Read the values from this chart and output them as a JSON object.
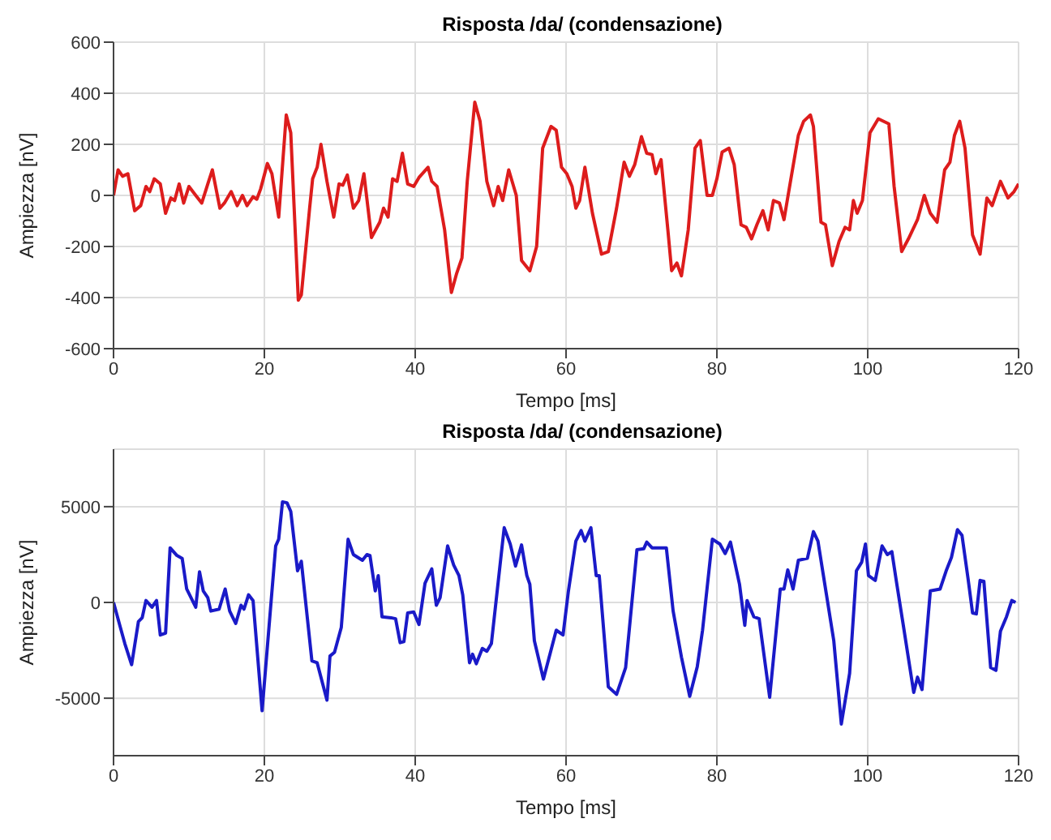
{
  "chart_data": [
    {
      "type": "line",
      "title": "Risposta /da/ (condensazione)",
      "xlabel": "Tempo [ms]",
      "ylabel": "Ampiezza [nV]",
      "xlim": [
        0,
        120
      ],
      "xticks": [
        0,
        20,
        40,
        60,
        80,
        100,
        120
      ],
      "ylim": [
        -600,
        600
      ],
      "yticks": [
        -600,
        -400,
        -200,
        0,
        200,
        400,
        600
      ],
      "grid": true,
      "series": [
        {
          "color": "#dd1c1c",
          "x": [
            0,
            0.6,
            1.2,
            1.9,
            2.8,
            3.6,
            4.3,
            4.8,
            5.4,
            6.2,
            6.9,
            7.6,
            8.1,
            8.7,
            9.3,
            10.0,
            10.9,
            11.7,
            12.5,
            13.1,
            14.1,
            14.7,
            15.6,
            16.4,
            17.1,
            17.7,
            18.5,
            19.0,
            19.5,
            20.4,
            21.0,
            21.9,
            22.9,
            23.5,
            24.5,
            24.9,
            26.0,
            26.4,
            27.0,
            27.5,
            28.3,
            29.2,
            29.9,
            30.4,
            31.0,
            31.8,
            32.5,
            33.2,
            34.2,
            35.3,
            35.8,
            36.4,
            37.0,
            37.6,
            38.3,
            39.0,
            39.8,
            40.5,
            41.7,
            42.2,
            42.9,
            43.9,
            44.8,
            45.5,
            46.2,
            46.9,
            47.9,
            48.6,
            49.5,
            50.4,
            51.0,
            51.6,
            52.4,
            53.4,
            54.1,
            55.2,
            56.1,
            56.9,
            58.0,
            58.7,
            59.4,
            60.1,
            60.8,
            61.3,
            61.8,
            62.5,
            63.5,
            64.7,
            65.6,
            66.7,
            67.7,
            68.4,
            69.1,
            70.0,
            70.7,
            71.4,
            71.9,
            72.6,
            73.5,
            74.0,
            74.7,
            75.3,
            76.2,
            77.1,
            77.8,
            78.7,
            79.4,
            80.0,
            80.7,
            81.6,
            82.3,
            83.2,
            83.9,
            84.6,
            85.3,
            86.1,
            86.8,
            87.5,
            88.3,
            88.9,
            89.7,
            90.8,
            91.5,
            92.4,
            92.8,
            93.8,
            94.4,
            95.3,
            96.2,
            97.0,
            97.6,
            98.1,
            98.6,
            99.3,
            100.3,
            101.4,
            102.8,
            103.5,
            104.5,
            105.4,
            106.6,
            107.5,
            108.3,
            109.2,
            110.2,
            110.9,
            111.5,
            112.2,
            112.9,
            113.9,
            114.9,
            115.8,
            116.5,
            117.6,
            118.6,
            119.4,
            120
          ],
          "values": [
            0,
            100,
            75,
            85,
            -60,
            -40,
            35,
            15,
            65,
            45,
            -70,
            -10,
            -20,
            45,
            -30,
            35,
            0,
            -30,
            45,
            100,
            -50,
            -30,
            15,
            -40,
            0,
            -40,
            -5,
            -15,
            25,
            125,
            85,
            -85,
            315,
            245,
            -410,
            -390,
            -50,
            65,
            110,
            200,
            55,
            -85,
            45,
            40,
            80,
            -50,
            -20,
            85,
            -165,
            -105,
            -50,
            -85,
            65,
            55,
            165,
            45,
            35,
            70,
            110,
            55,
            35,
            -135,
            -380,
            -305,
            -245,
            55,
            365,
            290,
            55,
            -40,
            35,
            -20,
            100,
            0,
            -255,
            -295,
            -200,
            185,
            270,
            255,
            110,
            85,
            35,
            -50,
            -20,
            110,
            -70,
            -230,
            -220,
            -50,
            130,
            75,
            120,
            230,
            165,
            160,
            85,
            140,
            -135,
            -295,
            -265,
            -315,
            -135,
            185,
            215,
            0,
            0,
            65,
            170,
            185,
            120,
            -115,
            -125,
            -170,
            -115,
            -60,
            -135,
            -20,
            -30,
            -95,
            45,
            235,
            290,
            315,
            270,
            -105,
            -115,
            -275,
            -180,
            -125,
            -135,
            -20,
            -70,
            -20,
            245,
            300,
            280,
            35,
            -220,
            -170,
            -95,
            0,
            -70,
            -105,
            100,
            130,
            235,
            290,
            185,
            -155,
            -230,
            -10,
            -40,
            55,
            -10,
            15,
            45
          ]
        }
      ]
    },
    {
      "type": "line",
      "title": "Risposta /da/ (condensazione)",
      "xlabel": "Tempo [ms]",
      "ylabel": "Ampiezza [nV]",
      "xlim": [
        0,
        120
      ],
      "xticks": [
        0,
        20,
        40,
        60,
        80,
        100,
        120
      ],
      "ylim": [
        -8000,
        8000
      ],
      "yticks": [
        -5000,
        0,
        5000
      ],
      "grid": true,
      "series": [
        {
          "color": "#1a1ac8",
          "x": [
            0,
            0.8,
            1.5,
            2.4,
            3.3,
            3.8,
            4.3,
            5.1,
            5.7,
            6.2,
            6.9,
            7.5,
            8.4,
            9.1,
            9.7,
            10.9,
            11.4,
            11.9,
            12.5,
            12.9,
            14.0,
            14.8,
            15.4,
            16.2,
            16.9,
            17.3,
            17.9,
            18.5,
            19.7,
            21.5,
            21.9,
            22.4,
            23.0,
            23.5,
            24.4,
            24.9,
            26.3,
            27.0,
            28.3,
            28.7,
            29.3,
            30.2,
            31.1,
            31.8,
            33.0,
            33.6,
            34.0,
            34.7,
            35.1,
            35.6,
            36.8,
            37.4,
            38.0,
            38.5,
            39.0,
            39.8,
            40.5,
            41.3,
            42.2,
            42.8,
            43.3,
            44.3,
            45.1,
            45.8,
            46.3,
            47.2,
            47.6,
            48.1,
            48.9,
            49.5,
            50.1,
            51.5,
            51.8,
            52.6,
            53.3,
            54.1,
            54.8,
            55.2,
            55.8,
            57.0,
            58.7,
            59.6,
            60.3,
            61.3,
            62.0,
            62.5,
            63.3,
            64.0,
            64.4,
            65.6,
            66.7,
            67.9,
            69.4,
            70.3,
            70.7,
            71.4,
            73.3,
            74.2,
            75.3,
            76.4,
            77.4,
            78.1,
            79.4,
            80.4,
            81.1,
            81.8,
            83.0,
            83.7,
            84.0,
            84.9,
            85.6,
            87.0,
            88.4,
            88.9,
            89.4,
            90.1,
            90.8,
            92.0,
            92.8,
            93.4,
            95.5,
            96.5,
            97.6,
            98.5,
            99.2,
            99.7,
            100.1,
            101.0,
            101.9,
            102.6,
            103.2,
            103.8,
            104.7,
            106.1,
            106.6,
            107.2,
            108.3,
            109.6,
            110.4,
            111.1,
            111.9,
            112.5,
            113.3,
            113.9,
            114.4,
            114.9,
            115.4,
            116.3,
            117.0,
            117.6,
            118.4,
            119.1,
            119.6
          ],
          "values": [
            0,
            -1150,
            -2150,
            -3250,
            -1000,
            -800,
            100,
            -250,
            100,
            -1700,
            -1600,
            2850,
            2450,
            2300,
            700,
            -250,
            1600,
            600,
            250,
            -450,
            -350,
            700,
            -450,
            -1100,
            -150,
            -350,
            400,
            100,
            -5650,
            2950,
            3300,
            5250,
            5200,
            4750,
            1650,
            2150,
            -3050,
            -3150,
            -5100,
            -2800,
            -2600,
            -1300,
            3300,
            2500,
            2200,
            2500,
            2450,
            600,
            1400,
            -750,
            -800,
            -850,
            -2100,
            -2050,
            -550,
            -500,
            -1150,
            1000,
            1750,
            -150,
            250,
            2950,
            1950,
            1400,
            400,
            -3150,
            -2700,
            -3200,
            -2400,
            -2550,
            -2150,
            2850,
            3900,
            3050,
            1900,
            3000,
            1400,
            950,
            -2000,
            -4000,
            -1450,
            -1700,
            550,
            3200,
            3750,
            3200,
            3900,
            1400,
            1400,
            -4400,
            -4800,
            -3400,
            2750,
            2800,
            3150,
            2850,
            2850,
            -450,
            -2850,
            -4900,
            -3350,
            -1450,
            3300,
            3050,
            2550,
            3150,
            950,
            -1200,
            100,
            -750,
            -850,
            -4950,
            700,
            700,
            1700,
            700,
            2200,
            2300,
            3700,
            3200,
            -2000,
            -6350,
            -3700,
            1650,
            2100,
            3050,
            1400,
            1150,
            2950,
            2500,
            2650,
            1100,
            -1150,
            -4700,
            -3900,
            -4550,
            600,
            700,
            1650,
            2350,
            3800,
            3500,
            1250,
            -550,
            -600,
            1150,
            1100,
            -3400,
            -3550,
            -1500,
            -750,
            100,
            0
          ]
        }
      ]
    }
  ]
}
